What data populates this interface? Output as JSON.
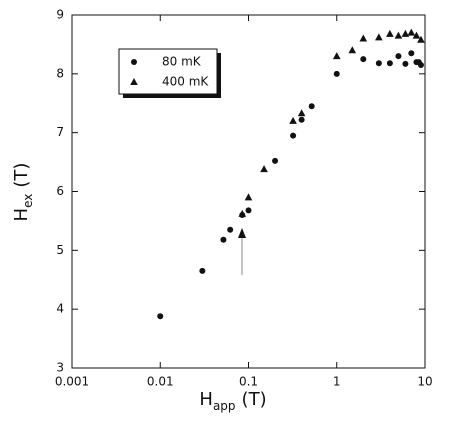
{
  "chart_data": {
    "type": "scatter",
    "x_label": "H",
    "x_label_subscript": "app",
    "x_label_unit": "(T)",
    "y_label": "H",
    "y_label_subscript": "ex",
    "y_label_unit": "(T)",
    "xscale": "log",
    "xlim": [
      0.001,
      10
    ],
    "xticks": [
      0.001,
      0.01,
      0.1,
      1,
      10
    ],
    "ylim": [
      3,
      9
    ],
    "yticks": [
      3,
      4,
      5,
      6,
      7,
      8,
      9
    ],
    "legend": "upper left",
    "series": [
      {
        "name": "80 mK",
        "marker": "circle",
        "color": "#111111",
        "x": [
          0.01,
          0.03,
          0.052,
          0.062,
          0.085,
          0.1,
          0.2,
          0.32,
          0.4,
          0.52,
          1,
          2,
          3,
          4,
          5,
          6,
          7,
          8,
          8.5,
          9
        ],
        "values": [
          3.88,
          4.65,
          5.18,
          5.35,
          5.6,
          5.68,
          6.52,
          6.95,
          7.22,
          7.45,
          8.0,
          8.25,
          8.18,
          8.18,
          8.3,
          8.17,
          8.35,
          8.2,
          8.2,
          8.15
        ]
      },
      {
        "name": "400 mK",
        "marker": "triangle",
        "color": "#111111",
        "x": [
          0.085,
          0.1,
          0.15,
          0.32,
          0.4,
          1,
          1.5,
          2,
          3,
          4,
          5,
          6,
          7,
          8,
          9
        ],
        "values": [
          5.62,
          5.9,
          6.38,
          7.2,
          7.33,
          8.3,
          8.4,
          8.6,
          8.62,
          8.68,
          8.65,
          8.68,
          8.7,
          8.65,
          8.58
        ]
      }
    ]
  }
}
